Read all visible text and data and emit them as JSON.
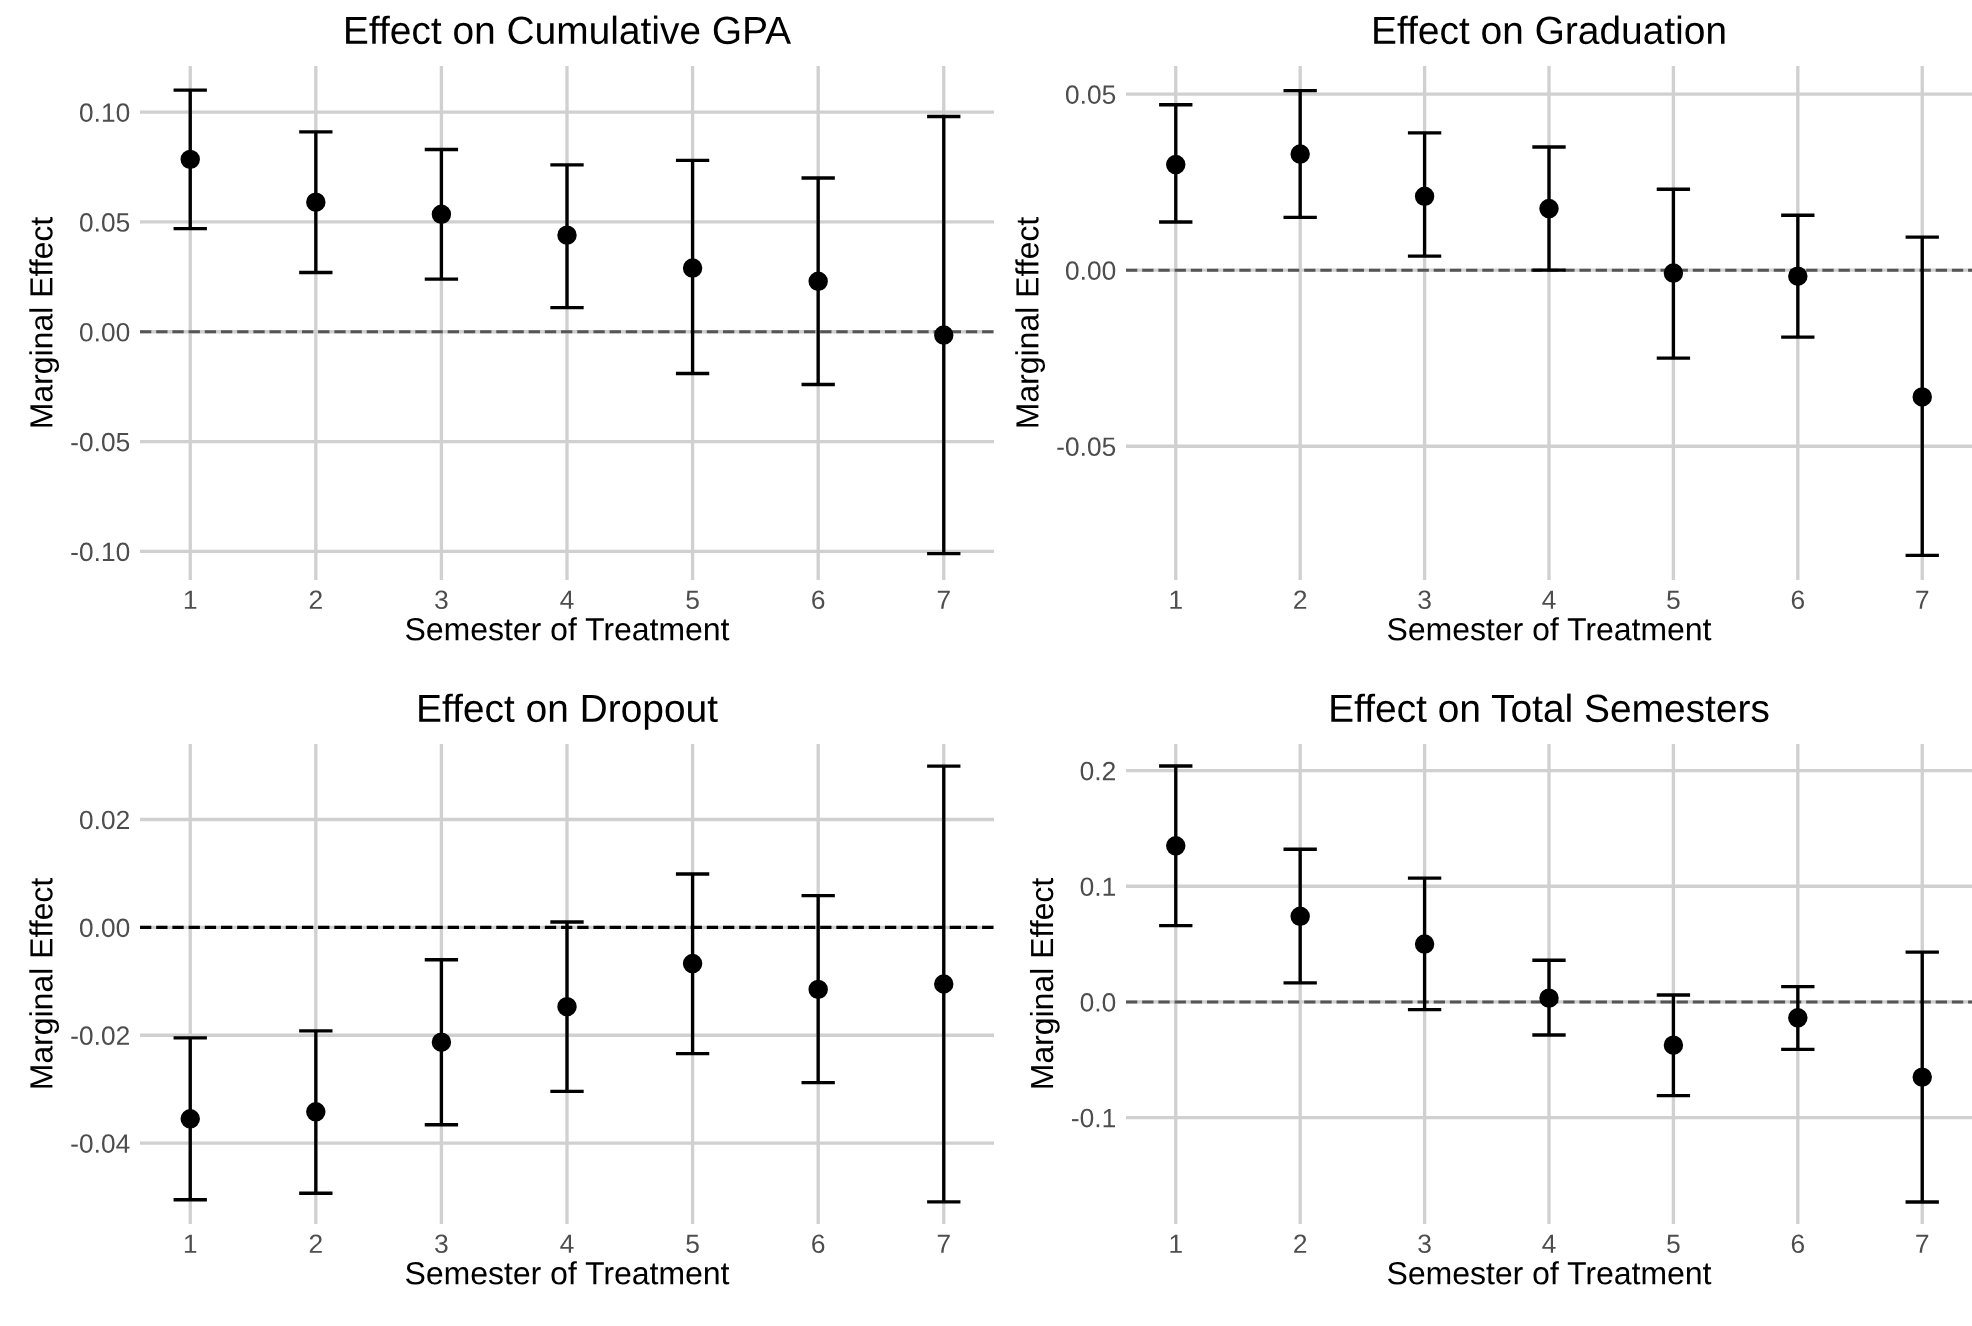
{
  "chart_data": [
    {
      "type": "scatter",
      "title": "Effect on Cumulative GPA",
      "xlabel": "Semester of Treatment",
      "ylabel": "Marginal Effect",
      "x": [
        1,
        2,
        3,
        4,
        5,
        6,
        7
      ],
      "xlim": [
        0.6,
        7.4
      ],
      "xticks": [
        1,
        2,
        3,
        4,
        5,
        6,
        7
      ],
      "ylim": [
        -0.113,
        0.121
      ],
      "yticks": [
        {
          "value": -0.1,
          "label": "-0.10"
        },
        {
          "value": -0.05,
          "label": "-0.05"
        },
        {
          "value": 0,
          "label": "0.00"
        },
        {
          "value": 0.05,
          "label": "0.05"
        },
        {
          "value": 0.1,
          "label": "0.10"
        }
      ],
      "grid": true,
      "marker": "circle",
      "series": [
        {
          "color": "#000000",
          "values": [
            0.0785,
            0.059,
            0.0535,
            0.044,
            0.029,
            0.023,
            -0.0015
          ],
          "errors": [
            [
              0.047,
              0.11
            ],
            [
              0.027,
              0.091
            ],
            [
              0.024,
              0.083
            ],
            [
              0.011,
              0.076
            ],
            [
              -0.019,
              0.078
            ],
            [
              -0.024,
              0.07
            ],
            [
              -0.101,
              0.098
            ]
          ]
        }
      ],
      "ref_lines": [
        {
          "axis": "y",
          "value": 0,
          "color": "#555555",
          "line_style": "dashed"
        }
      ]
    },
    {
      "type": "scatter",
      "title": "Effect on Graduation",
      "xlabel": "Semester of Treatment",
      "ylabel": "Marginal Effect",
      "x": [
        1,
        2,
        3,
        4,
        5,
        6,
        7
      ],
      "xlim": [
        0.6,
        7.4
      ],
      "xticks": [
        1,
        2,
        3,
        4,
        5,
        6,
        7
      ],
      "ylim": [
        -0.088,
        0.058
      ],
      "yticks": [
        {
          "value": -0.05,
          "label": "-0.05"
        },
        {
          "value": 0,
          "label": "0.00"
        },
        {
          "value": 0.05,
          "label": "0.05"
        }
      ],
      "grid": true,
      "marker": "circle",
      "series": [
        {
          "color": "#000000",
          "values": [
            0.03,
            0.033,
            0.021,
            0.0175,
            -0.0008,
            -0.0017,
            -0.036
          ],
          "errors": [
            [
              0.0137,
              0.047
            ],
            [
              0.015,
              0.051
            ],
            [
              0.004,
              0.039
            ],
            [
              0.0,
              0.035
            ],
            [
              -0.025,
              0.023
            ],
            [
              -0.019,
              0.0156
            ],
            [
              -0.081,
              0.0094
            ]
          ]
        }
      ],
      "ref_lines": [
        {
          "axis": "y",
          "value": 0,
          "color": "#555555",
          "line_style": "dashed"
        }
      ]
    },
    {
      "type": "scatter",
      "title": "Effect on Dropout",
      "xlabel": "Semester of Treatment",
      "ylabel": "Marginal Effect",
      "x": [
        1,
        2,
        3,
        4,
        5,
        6,
        7
      ],
      "xlim": [
        0.6,
        7.4
      ],
      "xticks": [
        1,
        2,
        3,
        4,
        5,
        6,
        7
      ],
      "ylim": [
        -0.055,
        0.034
      ],
      "yticks": [
        {
          "value": -0.04,
          "label": "-0.04"
        },
        {
          "value": -0.02,
          "label": "-0.02"
        },
        {
          "value": 0,
          "label": "0.00"
        },
        {
          "value": 0.02,
          "label": "0.02"
        }
      ],
      "grid": true,
      "marker": "circle",
      "series": [
        {
          "color": "#000000",
          "values": [
            -0.0355,
            -0.0342,
            -0.0213,
            -0.0147,
            -0.0067,
            -0.0115,
            -0.0105
          ],
          "errors": [
            [
              -0.0505,
              -0.0205
            ],
            [
              -0.0493,
              -0.0192
            ],
            [
              -0.0366,
              -0.006
            ],
            [
              -0.0304,
              0.001
            ],
            [
              -0.0234,
              0.0099
            ],
            [
              -0.0288,
              0.0059
            ],
            [
              -0.0509,
              0.0299
            ]
          ]
        }
      ],
      "ref_lines": [
        {
          "axis": "y",
          "value": 0,
          "color": "#000000",
          "line_style": "dashed"
        }
      ]
    },
    {
      "type": "scatter",
      "title": "Effect on Total Semesters",
      "xlabel": "Semester of Treatment",
      "ylabel": "Marginal Effect",
      "x": [
        1,
        2,
        3,
        4,
        5,
        6,
        7
      ],
      "xlim": [
        0.6,
        7.4
      ],
      "xticks": [
        1,
        2,
        3,
        4,
        5,
        6,
        7
      ],
      "ylim": [
        -0.192,
        0.223
      ],
      "yticks": [
        {
          "value": -0.1,
          "label": "-0.1"
        },
        {
          "value": 0,
          "label": "0.0"
        },
        {
          "value": 0.1,
          "label": "0.1"
        },
        {
          "value": 0.2,
          "label": "0.2"
        }
      ],
      "grid": true,
      "marker": "circle",
      "series": [
        {
          "color": "#000000",
          "values": [
            0.135,
            0.074,
            0.05,
            0.0033,
            -0.0374,
            -0.0137,
            -0.065
          ],
          "errors": [
            [
              0.066,
              0.204
            ],
            [
              0.0165,
              0.132
            ],
            [
              -0.0066,
              0.107
            ],
            [
              -0.0286,
              0.036
            ],
            [
              -0.081,
              0.006
            ],
            [
              -0.041,
              0.0132
            ],
            [
              -0.173,
              0.043
            ]
          ]
        }
      ],
      "ref_lines": [
        {
          "axis": "y",
          "value": 0,
          "color": "#555555",
          "line_style": "dashed"
        }
      ]
    }
  ]
}
